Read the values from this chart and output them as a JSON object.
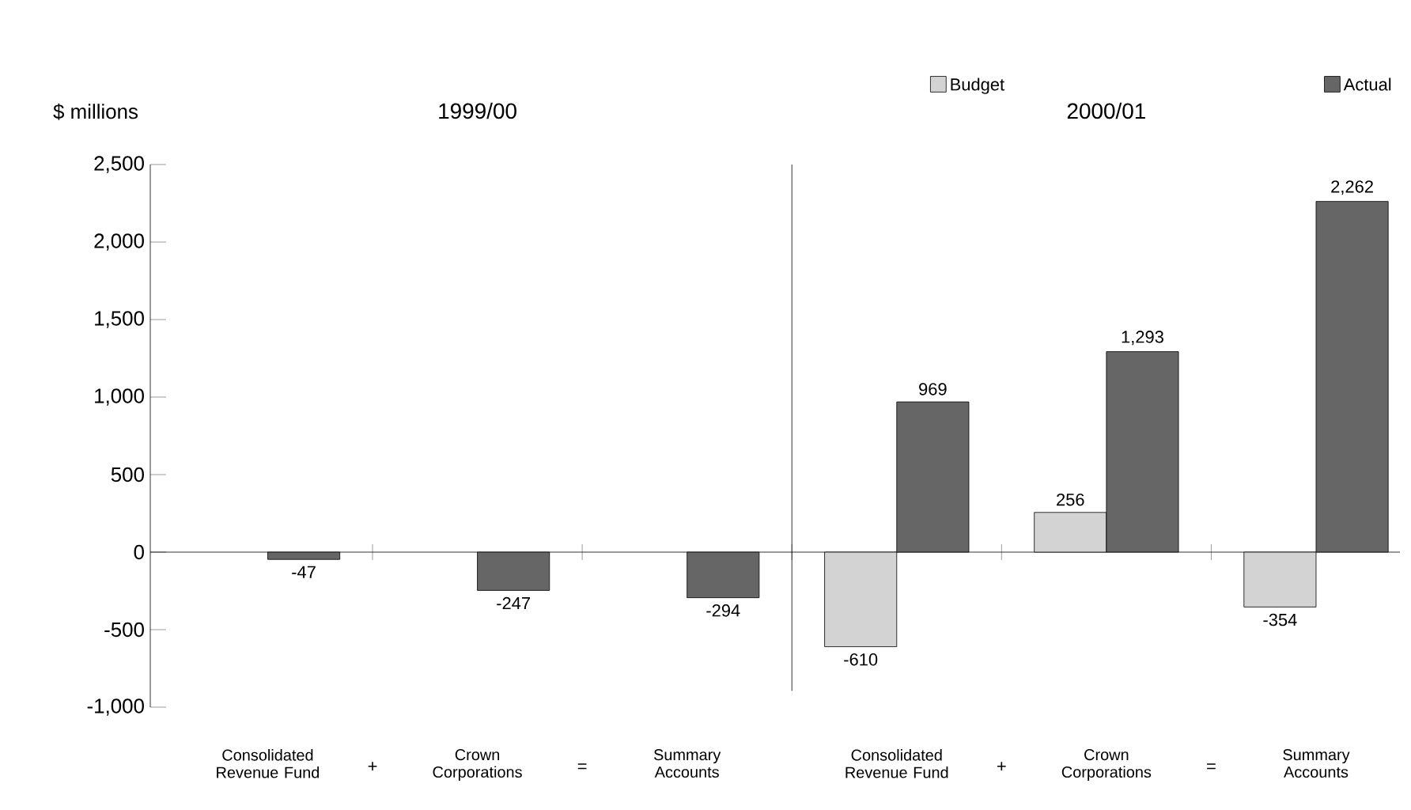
{
  "chart_data": {
    "type": "bar",
    "ylabel": "$ millions",
    "categories": [
      "Consolidated Revenue Fund",
      "Crown Corporations",
      "Summary Accounts",
      "Consolidated Revenue Fund",
      "Crown Corporations",
      "Summary Accounts"
    ],
    "series": [
      {
        "name": "Budget",
        "color": "#d3d3d3",
        "values": [
          null,
          null,
          null,
          -610,
          256,
          -354
        ],
        "value_labels": [
          null,
          null,
          null,
          "-610",
          "256",
          "-354"
        ]
      },
      {
        "name": "Actual",
        "color": "#666666",
        "values": [
          -47,
          -247,
          -294,
          969,
          1293,
          2262
        ],
        "value_labels": [
          "-47",
          "-247",
          "-294",
          "969",
          "1,293",
          "2,262"
        ]
      }
    ],
    "ylim": [
      -1000,
      2500
    ],
    "yticks": [
      {
        "value": -1000,
        "label": "-1,000"
      },
      {
        "value": -500,
        "label": "-500"
      },
      0,
      {
        "value": 500,
        "label": "500"
      },
      {
        "value": 1000,
        "label": "1,000"
      },
      {
        "value": 1500,
        "label": "1,500"
      },
      {
        "value": 2000,
        "label": "2,000"
      },
      {
        "value": 2500,
        "label": "2,500"
      }
    ],
    "annotations": [
      "1999/00",
      "2000/01",
      "+",
      "=",
      "+",
      "="
    ],
    "legend": "top right"
  }
}
